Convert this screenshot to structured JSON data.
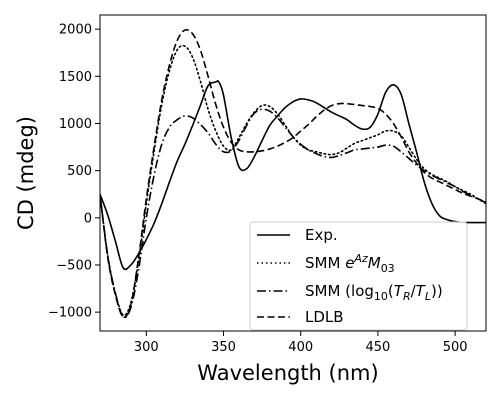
{
  "chart_data": {
    "type": "line",
    "xlabel": "Wavelength (nm)",
    "ylabel": "CD (mdeg)",
    "xlim": [
      270,
      520
    ],
    "ylim": [
      -1200,
      2150
    ],
    "xticks": [
      300,
      350,
      400,
      450,
      500
    ],
    "yticks": [
      -1000,
      -500,
      0,
      500,
      1000,
      1500,
      2000
    ],
    "grid": false,
    "legend_position": "lower-right",
    "series": [
      {
        "name": "Exp.",
        "style": "solid",
        "x": [
          270,
          275,
          280,
          285,
          290,
          295,
          300,
          305,
          310,
          315,
          320,
          325,
          330,
          335,
          340,
          345,
          347,
          350,
          355,
          360,
          365,
          370,
          375,
          380,
          385,
          390,
          395,
          400,
          405,
          410,
          415,
          420,
          425,
          430,
          435,
          440,
          445,
          450,
          455,
          460,
          465,
          470,
          475,
          480,
          485,
          490,
          495,
          500,
          505,
          510,
          515,
          520
        ],
        "y": [
          250,
          30,
          -250,
          -530,
          -500,
          -380,
          -230,
          -60,
          150,
          380,
          600,
          780,
          980,
          1190,
          1400,
          1440,
          1440,
          1300,
          850,
          540,
          520,
          650,
          820,
          980,
          1080,
          1170,
          1230,
          1260,
          1250,
          1220,
          1170,
          1120,
          1080,
          1040,
          980,
          940,
          960,
          1100,
          1330,
          1410,
          1310,
          1000,
          700,
          380,
          150,
          20,
          -20,
          -40,
          -50,
          -50,
          -50,
          -50
        ]
      },
      {
        "name": "SMM eAzM03",
        "style": "dotted",
        "x": [
          270,
          275,
          280,
          285,
          290,
          295,
          300,
          305,
          310,
          315,
          320,
          325,
          330,
          335,
          340,
          345,
          350,
          355,
          360,
          365,
          370,
          375,
          380,
          385,
          390,
          395,
          400,
          405,
          410,
          415,
          420,
          425,
          430,
          435,
          440,
          445,
          450,
          455,
          460,
          465,
          470,
          475,
          480,
          485,
          490,
          495,
          500,
          505,
          510,
          515,
          520
        ],
        "y": [
          250,
          -400,
          -800,
          -1030,
          -900,
          -450,
          150,
          700,
          1200,
          1560,
          1780,
          1820,
          1700,
          1450,
          1150,
          920,
          760,
          720,
          850,
          1000,
          1120,
          1190,
          1180,
          1100,
          980,
          860,
          770,
          720,
          700,
          680,
          670,
          690,
          740,
          790,
          820,
          850,
          880,
          920,
          920,
          870,
          750,
          620,
          520,
          460,
          420,
          380,
          330,
          290,
          250,
          200,
          150
        ]
      },
      {
        "name": "SMM (log10(TR/TL))",
        "style": "dashdot",
        "x": [
          270,
          275,
          280,
          285,
          290,
          295,
          300,
          305,
          310,
          315,
          320,
          325,
          330,
          335,
          340,
          345,
          350,
          355,
          360,
          365,
          370,
          375,
          380,
          385,
          390,
          395,
          400,
          405,
          410,
          415,
          420,
          425,
          430,
          435,
          440,
          445,
          450,
          455,
          460,
          465,
          470,
          475,
          480,
          485,
          490,
          495,
          500,
          505,
          510,
          515,
          520
        ],
        "y": [
          250,
          -400,
          -800,
          -1050,
          -950,
          -550,
          0,
          450,
          780,
          960,
          1040,
          1080,
          1060,
          990,
          900,
          780,
          700,
          710,
          820,
          980,
          1110,
          1150,
          1130,
          1060,
          960,
          860,
          780,
          720,
          680,
          650,
          640,
          660,
          690,
          720,
          730,
          740,
          750,
          770,
          760,
          700,
          630,
          560,
          500,
          450,
          410,
          370,
          330,
          280,
          240,
          200,
          160
        ]
      },
      {
        "name": "LDLB",
        "style": "dashed",
        "x": [
          270,
          275,
          280,
          285,
          290,
          295,
          300,
          305,
          310,
          315,
          320,
          325,
          330,
          335,
          340,
          345,
          350,
          355,
          360,
          365,
          370,
          375,
          380,
          385,
          390,
          395,
          400,
          405,
          410,
          415,
          420,
          425,
          430,
          435,
          440,
          445,
          450,
          455,
          460,
          465,
          470,
          475,
          480,
          485,
          490,
          495,
          500,
          505,
          510,
          515,
          520
        ],
        "y": [
          250,
          -420,
          -820,
          -1050,
          -920,
          -420,
          200,
          750,
          1250,
          1620,
          1880,
          1990,
          1950,
          1780,
          1500,
          1200,
          960,
          800,
          720,
          700,
          700,
          710,
          730,
          760,
          800,
          850,
          920,
          990,
          1070,
          1140,
          1190,
          1210,
          1210,
          1200,
          1190,
          1180,
          1160,
          1100,
          1000,
          860,
          700,
          580,
          480,
          420,
          380,
          340,
          300,
          260,
          230,
          200,
          170
        ]
      }
    ]
  }
}
